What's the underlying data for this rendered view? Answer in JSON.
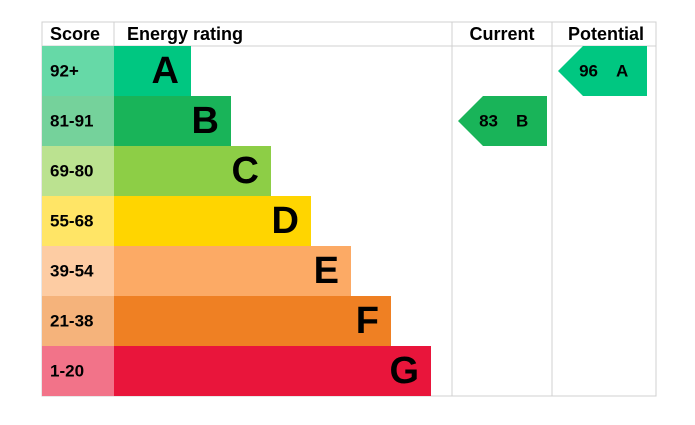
{
  "headers": {
    "score": "Score",
    "rating": "Energy rating",
    "current": "Current",
    "potential": "Potential"
  },
  "bands": [
    {
      "score": "92+",
      "rating": "A",
      "color": "#00c781",
      "light": "#66d9a7"
    },
    {
      "score": "81-91",
      "rating": "B",
      "color": "#19b459",
      "light": "#75d29b"
    },
    {
      "score": "69-80",
      "rating": "C",
      "color": "#8dce46",
      "light": "#bbe290"
    },
    {
      "score": "55-68",
      "rating": "D",
      "color": "#ffd500",
      "light": "#ffe566"
    },
    {
      "score": "39-54",
      "rating": "E",
      "color": "#fcaa65",
      "light": "#fdcca3"
    },
    {
      "score": "21-38",
      "rating": "F",
      "color": "#ef8023",
      "light": "#f5b37b"
    },
    {
      "score": "1-20",
      "rating": "G",
      "color": "#e9153b",
      "light": "#f27389"
    }
  ],
  "current": {
    "score": 83,
    "rating": "B"
  },
  "potential": {
    "score": 96,
    "rating": "A"
  }
}
